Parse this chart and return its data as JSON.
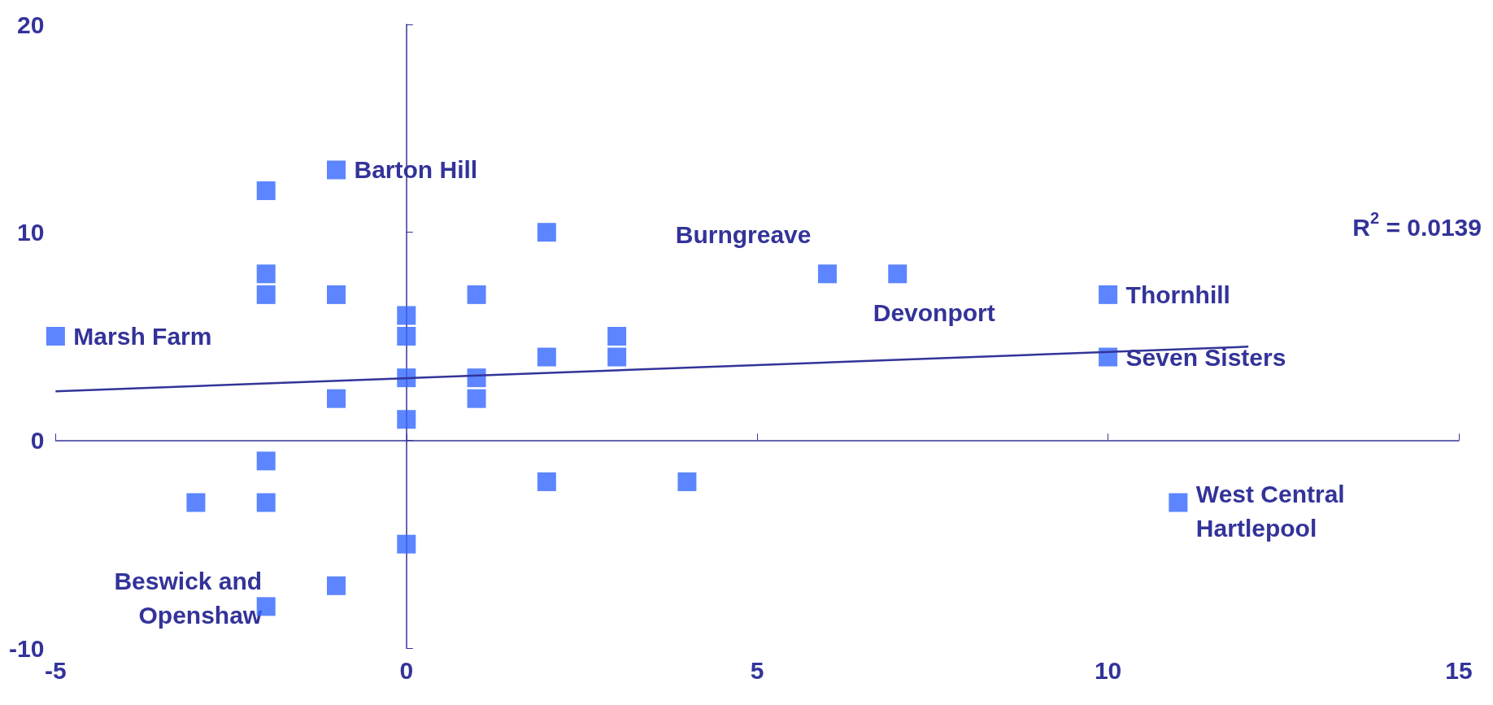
{
  "chart_data": {
    "type": "scatter",
    "xlim": [
      -5,
      15
    ],
    "xticks": [
      -5,
      0,
      5,
      10,
      15
    ],
    "ylim": [
      -10,
      20
    ],
    "yticks": [
      -10,
      0,
      10,
      20
    ],
    "series": [
      {
        "type": "scatter",
        "color": "#3366ff",
        "marker": "square",
        "x": [
          -5,
          -1,
          -2,
          -2,
          -2,
          -1,
          1,
          0,
          0,
          0,
          1,
          1,
          -1,
          0,
          2,
          2,
          3,
          3,
          6,
          7,
          10,
          10,
          -2,
          -3,
          -2,
          2,
          4,
          0,
          -1,
          -2,
          11
        ],
        "values": [
          5,
          13,
          12,
          8,
          7,
          7,
          7,
          6,
          5,
          3,
          3,
          2,
          2,
          1,
          10,
          4,
          5,
          4,
          8,
          8,
          7,
          4,
          -1,
          -3,
          -3,
          -2,
          -2,
          -5,
          -7,
          -8,
          -3
        ]
      },
      {
        "type": "line",
        "color": "#333399",
        "marker": "none",
        "x": [
          -5,
          12
        ],
        "values": [
          2.35,
          4.5
        ]
      }
    ],
    "annotations": [
      {
        "text": "Marsh Farm",
        "x": -5,
        "y": 5
      },
      {
        "text": "Barton Hill",
        "x": -1,
        "y": 13
      },
      {
        "text": "Burngreave",
        "x": 6,
        "y": 8
      },
      {
        "text": "Devonport",
        "x": 7,
        "y": 8
      },
      {
        "text": "Thornhill",
        "x": 10,
        "y": 7
      },
      {
        "text": "Seven Sisters",
        "x": 10,
        "y": 4
      },
      {
        "text": "West Central\nHartlepool",
        "x": 11,
        "y": -3
      },
      {
        "text": "Beswick and\nOpenshaw",
        "x": -2,
        "y": -8
      },
      "R$^{2}$ = 0.0139"
    ]
  }
}
